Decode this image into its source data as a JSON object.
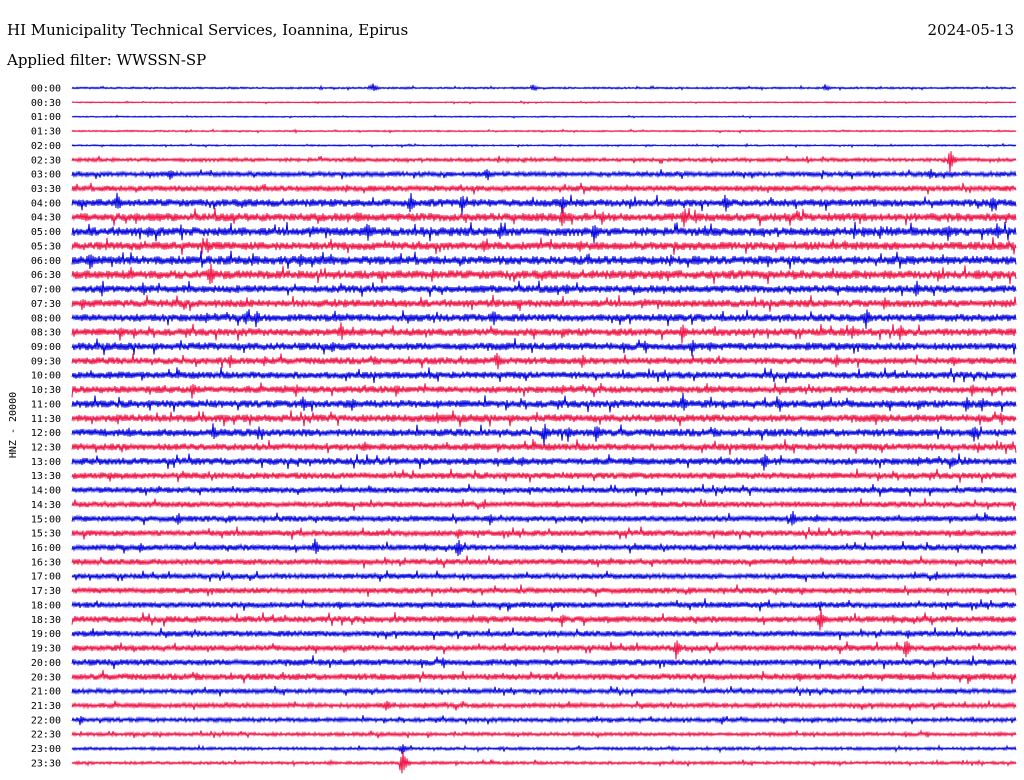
{
  "header": {
    "title": "HI Municipality Technical Services, Ioannina, Epirus",
    "date": "2024-05-13",
    "filter": "Applied filter: WWSSN-SP"
  },
  "chart_data": {
    "type": "helicorder",
    "ylabel": "HNZ - 20000",
    "time_labels": [
      "00:00",
      "00:30",
      "01:00",
      "01:30",
      "02:00",
      "02:30",
      "03:00",
      "03:30",
      "04:00",
      "04:30",
      "05:00",
      "05:30",
      "06:00",
      "06:30",
      "07:00",
      "07:30",
      "08:00",
      "08:30",
      "09:00",
      "09:30",
      "10:00",
      "10:30",
      "11:00",
      "11:30",
      "12:00",
      "12:30",
      "13:00",
      "13:30",
      "14:00",
      "14:30",
      "15:00",
      "15:30",
      "16:00",
      "16:30",
      "17:00",
      "17:30",
      "18:00",
      "18:30",
      "19:00",
      "19:30",
      "20:00",
      "20:30",
      "21:00",
      "21:30",
      "22:00",
      "22:30",
      "23:00",
      "23:30"
    ],
    "trace_colors": [
      "#0000dd",
      "#ee1144"
    ],
    "noise_level": [
      0.6,
      0.4,
      0.4,
      0.5,
      0.5,
      1.2,
      1.6,
      2.0,
      2.6,
      2.8,
      3.0,
      2.8,
      3.0,
      3.0,
      2.6,
      2.6,
      2.6,
      2.6,
      2.6,
      2.4,
      2.4,
      2.4,
      2.6,
      2.6,
      2.6,
      2.4,
      2.4,
      2.2,
      2.0,
      2.0,
      2.0,
      2.0,
      2.0,
      2.0,
      1.8,
      2.0,
      2.0,
      2.2,
      2.0,
      2.0,
      2.2,
      2.2,
      1.6,
      1.6,
      1.4,
      1.2,
      1.0,
      1.0
    ],
    "events": [
      {
        "row": 0,
        "x": 373,
        "amp": 5
      },
      {
        "row": 0,
        "x": 533,
        "amp": 4
      },
      {
        "row": 0,
        "x": 825,
        "amp": 4
      },
      {
        "row": 5,
        "x": 950,
        "amp": 14
      },
      {
        "row": 6,
        "x": 170,
        "amp": 7
      },
      {
        "row": 6,
        "x": 487,
        "amp": 8
      },
      {
        "row": 6,
        "x": 930,
        "amp": 7
      },
      {
        "row": 8,
        "x": 117,
        "amp": 12
      },
      {
        "row": 8,
        "x": 410,
        "amp": 14
      },
      {
        "row": 8,
        "x": 462,
        "amp": 12
      },
      {
        "row": 8,
        "x": 562,
        "amp": 12
      },
      {
        "row": 8,
        "x": 725,
        "amp": 12
      },
      {
        "row": 8,
        "x": 992,
        "amp": 10
      },
      {
        "row": 9,
        "x": 136,
        "amp": 8
      },
      {
        "row": 9,
        "x": 357,
        "amp": 8
      },
      {
        "row": 9,
        "x": 562,
        "amp": 14
      },
      {
        "row": 9,
        "x": 602,
        "amp": 8
      },
      {
        "row": 9,
        "x": 684,
        "amp": 12
      },
      {
        "row": 10,
        "x": 148,
        "amp": 8
      },
      {
        "row": 10,
        "x": 367,
        "amp": 12
      },
      {
        "row": 10,
        "x": 500,
        "amp": 12
      },
      {
        "row": 10,
        "x": 594,
        "amp": 12
      },
      {
        "row": 10,
        "x": 948,
        "amp": 10
      },
      {
        "row": 10,
        "x": 997,
        "amp": 12
      },
      {
        "row": 11,
        "x": 207,
        "amp": 10
      },
      {
        "row": 11,
        "x": 483,
        "amp": 8
      },
      {
        "row": 11,
        "x": 580,
        "amp": 8
      },
      {
        "row": 11,
        "x": 845,
        "amp": 6
      },
      {
        "row": 12,
        "x": 90,
        "amp": 12
      },
      {
        "row": 12,
        "x": 300,
        "amp": 10
      },
      {
        "row": 12,
        "x": 768,
        "amp": 8
      },
      {
        "row": 13,
        "x": 131,
        "amp": 8
      },
      {
        "row": 13,
        "x": 210,
        "amp": 14
      },
      {
        "row": 13,
        "x": 432,
        "amp": 8
      },
      {
        "row": 13,
        "x": 660,
        "amp": 6
      },
      {
        "row": 13,
        "x": 794,
        "amp": 6
      },
      {
        "row": 14,
        "x": 143,
        "amp": 8
      },
      {
        "row": 14,
        "x": 566,
        "amp": 8
      },
      {
        "row": 14,
        "x": 916,
        "amp": 12
      },
      {
        "row": 15,
        "x": 82,
        "amp": 8
      },
      {
        "row": 15,
        "x": 518,
        "amp": 6
      },
      {
        "row": 15,
        "x": 884,
        "amp": 8
      },
      {
        "row": 15,
        "x": 1006,
        "amp": 6
      },
      {
        "row": 16,
        "x": 246,
        "amp": 10
      },
      {
        "row": 16,
        "x": 256,
        "amp": 10
      },
      {
        "row": 16,
        "x": 493,
        "amp": 10
      },
      {
        "row": 16,
        "x": 866,
        "amp": 12
      },
      {
        "row": 17,
        "x": 120,
        "amp": 8
      },
      {
        "row": 17,
        "x": 341,
        "amp": 10
      },
      {
        "row": 17,
        "x": 682,
        "amp": 12
      },
      {
        "row": 17,
        "x": 852,
        "amp": 8
      },
      {
        "row": 17,
        "x": 900,
        "amp": 10
      },
      {
        "row": 18,
        "x": 332,
        "amp": 8
      },
      {
        "row": 18,
        "x": 692,
        "amp": 10
      },
      {
        "row": 19,
        "x": 230,
        "amp": 8
      },
      {
        "row": 19,
        "x": 264,
        "amp": 6
      },
      {
        "row": 19,
        "x": 497,
        "amp": 12
      },
      {
        "row": 19,
        "x": 582,
        "amp": 8
      },
      {
        "row": 19,
        "x": 836,
        "amp": 8
      },
      {
        "row": 21,
        "x": 192,
        "amp": 10
      },
      {
        "row": 21,
        "x": 296,
        "amp": 8
      },
      {
        "row": 21,
        "x": 396,
        "amp": 8
      },
      {
        "row": 21,
        "x": 972,
        "amp": 8
      },
      {
        "row": 22,
        "x": 303,
        "amp": 10
      },
      {
        "row": 22,
        "x": 352,
        "amp": 8
      },
      {
        "row": 22,
        "x": 683,
        "amp": 12
      },
      {
        "row": 22,
        "x": 777,
        "amp": 8
      },
      {
        "row": 22,
        "x": 822,
        "amp": 6
      },
      {
        "row": 22,
        "x": 966,
        "amp": 10
      },
      {
        "row": 22,
        "x": 982,
        "amp": 8
      },
      {
        "row": 23,
        "x": 437,
        "amp": 8
      },
      {
        "row": 23,
        "x": 876,
        "amp": 8
      },
      {
        "row": 24,
        "x": 213,
        "amp": 10
      },
      {
        "row": 24,
        "x": 258,
        "amp": 8
      },
      {
        "row": 24,
        "x": 544,
        "amp": 14
      },
      {
        "row": 24,
        "x": 568,
        "amp": 10
      },
      {
        "row": 24,
        "x": 596,
        "amp": 12
      },
      {
        "row": 24,
        "x": 974,
        "amp": 10
      },
      {
        "row": 25,
        "x": 978,
        "amp": 6
      },
      {
        "row": 26,
        "x": 522,
        "amp": 8
      },
      {
        "row": 26,
        "x": 764,
        "amp": 12
      },
      {
        "row": 26,
        "x": 952,
        "amp": 8
      },
      {
        "row": 30,
        "x": 178,
        "amp": 8
      },
      {
        "row": 30,
        "x": 490,
        "amp": 8
      },
      {
        "row": 30,
        "x": 792,
        "amp": 10
      },
      {
        "row": 31,
        "x": 458,
        "amp": 8
      },
      {
        "row": 32,
        "x": 140,
        "amp": 6
      },
      {
        "row": 32,
        "x": 315,
        "amp": 10
      },
      {
        "row": 32,
        "x": 458,
        "amp": 12
      },
      {
        "row": 35,
        "x": 802,
        "amp": 6
      },
      {
        "row": 36,
        "x": 820,
        "amp": 6
      },
      {
        "row": 37,
        "x": 562,
        "amp": 8
      },
      {
        "row": 37,
        "x": 820,
        "amp": 14
      },
      {
        "row": 38,
        "x": 908,
        "amp": 6
      },
      {
        "row": 39,
        "x": 676,
        "amp": 12
      },
      {
        "row": 39,
        "x": 906,
        "amp": 14
      },
      {
        "row": 43,
        "x": 386,
        "amp": 8
      },
      {
        "row": 44,
        "x": 80,
        "amp": 6
      },
      {
        "row": 44,
        "x": 722,
        "amp": 5
      },
      {
        "row": 46,
        "x": 402,
        "amp": 6
      },
      {
        "row": 47,
        "x": 402,
        "amp": 16
      }
    ]
  }
}
